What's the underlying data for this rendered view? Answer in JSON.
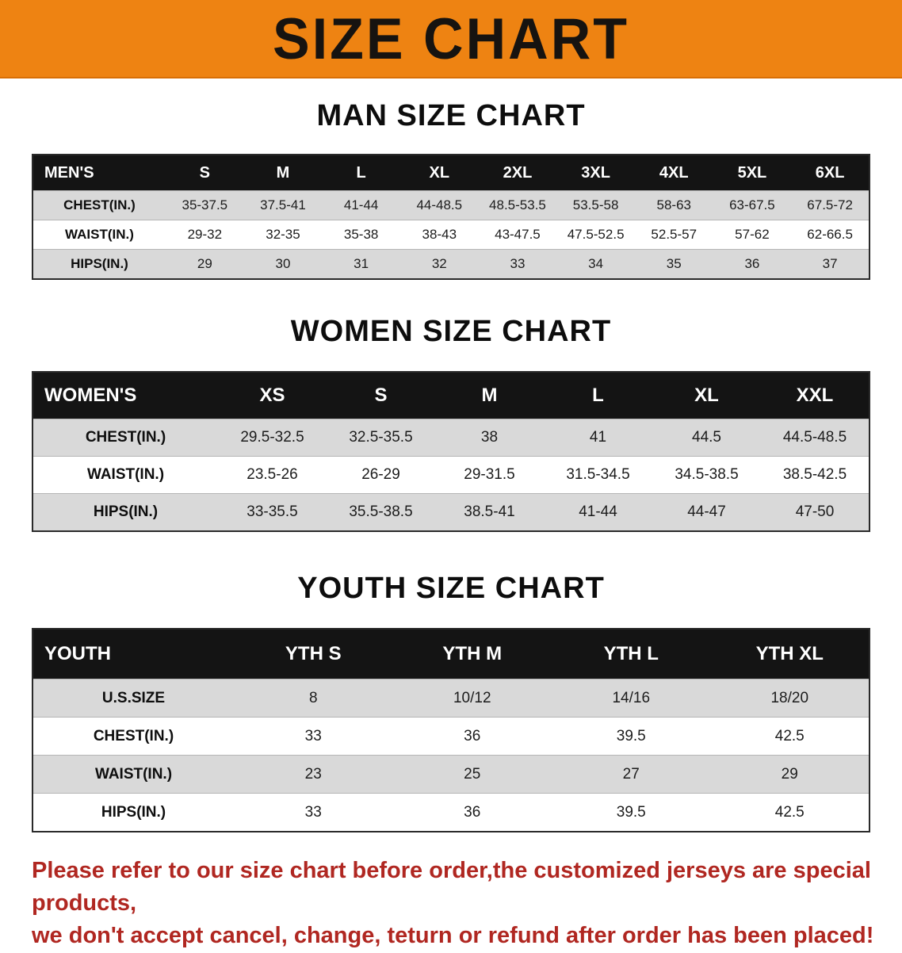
{
  "banner": {
    "title": "SIZE CHART",
    "background_color": "#ee8312",
    "text_color": "#161310"
  },
  "chart_data": [
    {
      "type": "table",
      "title": "MAN SIZE CHART",
      "columns": [
        "MEN'S",
        "S",
        "M",
        "L",
        "XL",
        "2XL",
        "3XL",
        "4XL",
        "5XL",
        "6XL"
      ],
      "rows": [
        [
          "CHEST(IN.)",
          "35-37.5",
          "37.5-41",
          "41-44",
          "44-48.5",
          "48.5-53.5",
          "53.5-58",
          "58-63",
          "63-67.5",
          "67.5-72"
        ],
        [
          "WAIST(IN.)",
          "29-32",
          "32-35",
          "35-38",
          "38-43",
          "43-47.5",
          "47.5-52.5",
          "52.5-57",
          "57-62",
          "62-66.5"
        ],
        [
          "HIPS(IN.)",
          "29",
          "30",
          "31",
          "32",
          "33",
          "34",
          "35",
          "36",
          "37"
        ]
      ]
    },
    {
      "type": "table",
      "title": "WOMEN SIZE CHART",
      "columns": [
        "WOMEN'S",
        "XS",
        "S",
        "M",
        "L",
        "XL",
        "XXL"
      ],
      "rows": [
        [
          "CHEST(IN.)",
          "29.5-32.5",
          "32.5-35.5",
          "38",
          "41",
          "44.5",
          "44.5-48.5"
        ],
        [
          "WAIST(IN.)",
          "23.5-26",
          "26-29",
          "29-31.5",
          "31.5-34.5",
          "34.5-38.5",
          "38.5-42.5"
        ],
        [
          "HIPS(IN.)",
          "33-35.5",
          "35.5-38.5",
          "38.5-41",
          "41-44",
          "44-47",
          "47-50"
        ]
      ]
    },
    {
      "type": "table",
      "title": "YOUTH SIZE CHART",
      "columns": [
        "YOUTH",
        "YTH S",
        "YTH M",
        "YTH L",
        "YTH XL"
      ],
      "rows": [
        [
          "U.S.SIZE",
          "8",
          "10/12",
          "14/16",
          "18/20"
        ],
        [
          "CHEST(IN.)",
          "33",
          "36",
          "39.5",
          "42.5"
        ],
        [
          "WAIST(IN.)",
          "23",
          "25",
          "27",
          "29"
        ],
        [
          "HIPS(IN.)",
          "33",
          "36",
          "39.5",
          "42.5"
        ]
      ]
    }
  ],
  "footer": {
    "text_color": "#b02721",
    "lines": [
      "Please refer to our size chart before order,the customized jerseys are special products,",
      "we don't accept cancel, change, teturn or refund after order has been placed!"
    ]
  }
}
